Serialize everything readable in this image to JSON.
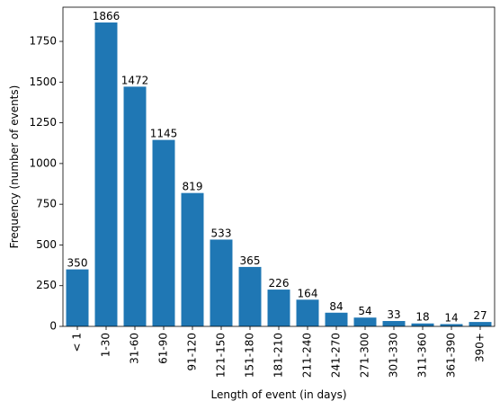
{
  "chart_data": {
    "type": "bar",
    "categories": [
      "< 1",
      "1-30",
      "31-60",
      "61-90",
      "91-120",
      "121-150",
      "151-180",
      "181-210",
      "211-240",
      "241-270",
      "271-300",
      "301-330",
      "311-360",
      "361-390",
      "390+"
    ],
    "values": [
      350,
      1866,
      1472,
      1145,
      819,
      533,
      365,
      226,
      164,
      84,
      54,
      33,
      18,
      14,
      27
    ],
    "xlabel": "Length of event (in days)",
    "ylabel": "Frequency (number of events)",
    "ylim": [
      0,
      1960
    ],
    "yticks": [
      0,
      250,
      500,
      750,
      1000,
      1250,
      1500,
      1750
    ],
    "bar_color": "#1f77b4",
    "grid": false
  }
}
